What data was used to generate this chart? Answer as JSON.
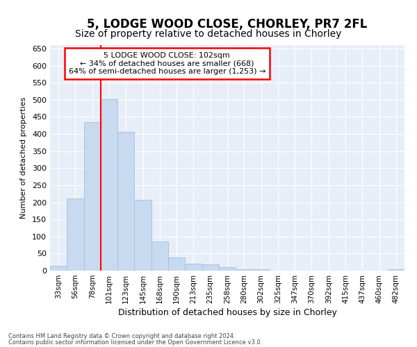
{
  "title1": "5, LODGE WOOD CLOSE, CHORLEY, PR7 2FL",
  "title2": "Size of property relative to detached houses in Chorley",
  "xlabel": "Distribution of detached houses by size in Chorley",
  "ylabel": "Number of detached properties",
  "categories": [
    "33sqm",
    "56sqm",
    "78sqm",
    "101sqm",
    "123sqm",
    "145sqm",
    "168sqm",
    "190sqm",
    "213sqm",
    "235sqm",
    "258sqm",
    "280sqm",
    "302sqm",
    "325sqm",
    "347sqm",
    "370sqm",
    "392sqm",
    "415sqm",
    "437sqm",
    "460sqm",
    "482sqm"
  ],
  "values": [
    15,
    212,
    435,
    502,
    407,
    207,
    85,
    38,
    20,
    18,
    10,
    5,
    4,
    0,
    0,
    0,
    0,
    0,
    0,
    0,
    4
  ],
  "bar_color": "#c8daf0",
  "bar_edge_color": "#a0bfdf",
  "vline_x": 3,
  "vline_color": "red",
  "annotation_line1": "5 LODGE WOOD CLOSE: 102sqm",
  "annotation_line2": "← 34% of detached houses are smaller (668)",
  "annotation_line3": "64% of semi-detached houses are larger (1,253) →",
  "annotation_box_color": "white",
  "annotation_box_edge_color": "red",
  "ylim": [
    0,
    660
  ],
  "yticks": [
    0,
    50,
    100,
    150,
    200,
    250,
    300,
    350,
    400,
    450,
    500,
    550,
    600,
    650
  ],
  "footnote1": "Contains HM Land Registry data © Crown copyright and database right 2024.",
  "footnote2": "Contains public sector information licensed under the Open Government Licence v3.0.",
  "bg_color": "#ffffff",
  "plot_bg_color": "#e8eef8",
  "grid_color": "#ffffff",
  "title1_fontsize": 12,
  "title2_fontsize": 10
}
